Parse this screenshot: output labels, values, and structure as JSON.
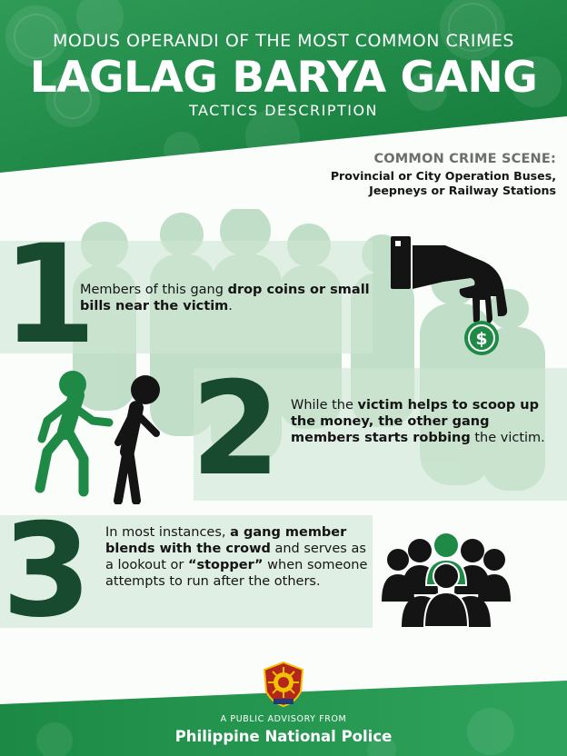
{
  "header": {
    "pre_title": "MODUS OPERANDI OF THE MOST COMMON CRIMES",
    "title": "LAGLAG BARYA GANG",
    "subtitle": "TACTICS DESCRIPTION"
  },
  "crime_scene": {
    "heading": "COMMON CRIME SCENE:",
    "line_1": "Provincial or City Operation Buses,",
    "line_2": "Jeepneys or Railway Stations"
  },
  "steps": [
    {
      "number": "1",
      "segments": [
        {
          "text": "Members of this gang ",
          "bold": false
        },
        {
          "text": "drop coins or small bills near the victim",
          "bold": true
        },
        {
          "text": ".",
          "bold": false
        }
      ]
    },
    {
      "number": "2",
      "segments": [
        {
          "text": "While the ",
          "bold": false
        },
        {
          "text": "victim helps to scoop up the money, the other gang members starts robbing",
          "bold": true
        },
        {
          "text": " the victim.",
          "bold": false
        }
      ]
    },
    {
      "number": "3",
      "segments": [
        {
          "text": "In most instances, ",
          "bold": false
        },
        {
          "text": "a gang member blends with the crowd",
          "bold": true
        },
        {
          "text": " and serves as a lookout or ",
          "bold": false
        },
        {
          "text": "“stopper”",
          "bold": true
        },
        {
          "text": " when someone attempts to run after the others.",
          "bold": false
        }
      ]
    }
  ],
  "icons": {
    "step_1": "hand-dropping-coin-icon",
    "step_2": "people-walking-icon",
    "step_3": "crowd-icon",
    "footer": "police-seal-icon",
    "coin_symbol": "$"
  },
  "footer": {
    "advisory": "A PUBLIC ADVISORY FROM",
    "agency": "Philippine National Police"
  },
  "colors": {
    "brand_green": "#1f8a46",
    "dark_green": "#174a2e",
    "band": "#cfe6d4",
    "silhouette": "#9ccaa8",
    "icon_black": "#141414"
  }
}
